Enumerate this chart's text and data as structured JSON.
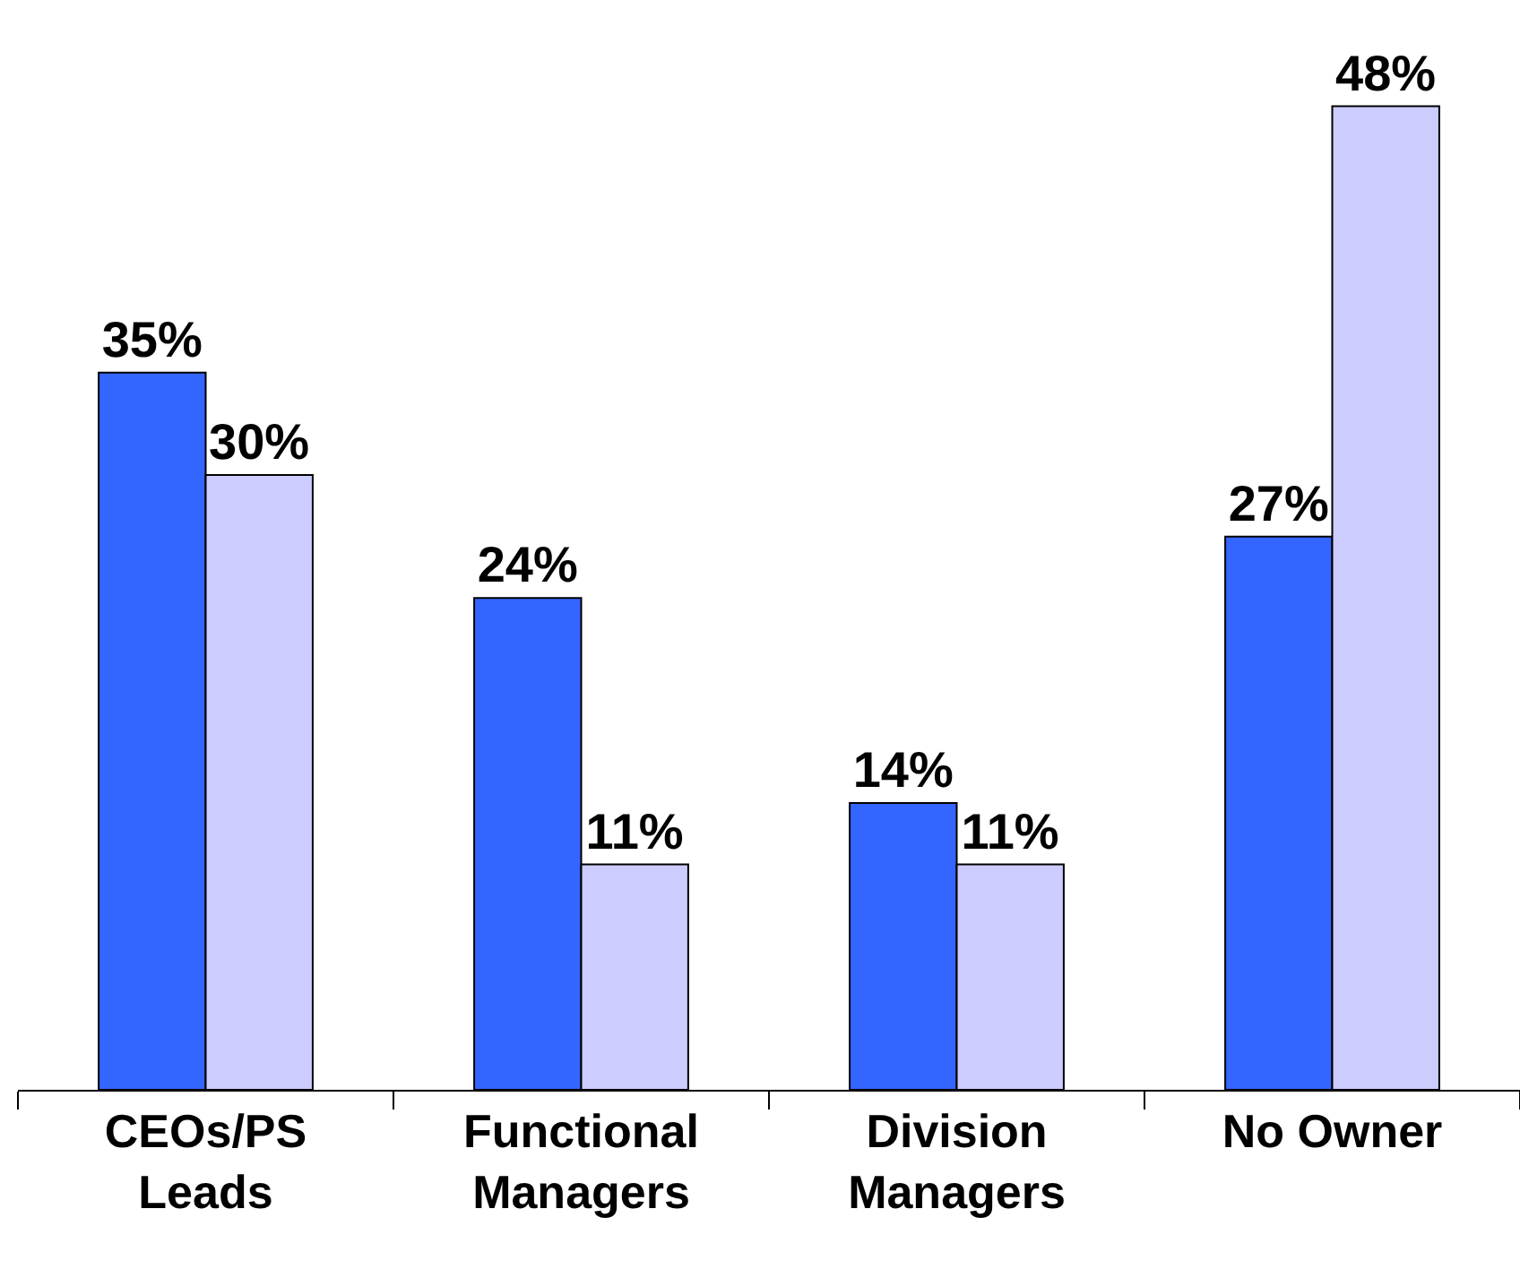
{
  "chart_data": {
    "type": "bar",
    "categories": [
      "CEOs/PS\nLeads",
      "Functional\nManagers",
      "Division\nManagers",
      "No Owner"
    ],
    "series": [
      {
        "color": "#3366ff",
        "values": [
          35,
          24,
          14,
          27
        ],
        "value_labels": [
          "35%",
          "24%",
          "14%",
          "27%"
        ]
      },
      {
        "color": "#ccccff",
        "values": [
          30,
          11,
          11,
          48
        ],
        "value_labels": [
          "30%",
          "11%",
          "11%",
          "48%"
        ]
      }
    ],
    "legend": false
  }
}
